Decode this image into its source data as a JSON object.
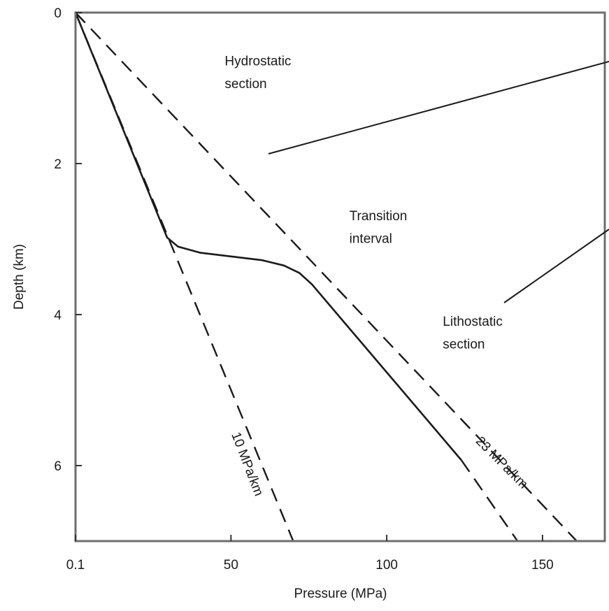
{
  "chart_data": {
    "type": "line",
    "title": "",
    "xlabel": "Pressure (MPa)",
    "ylabel": "Depth (km)",
    "xlim": [
      0.1,
      170
    ],
    "ylim": [
      0,
      7
    ],
    "y_inverted": true,
    "x_ticks": [
      {
        "value": 0.1,
        "label": "0.1"
      },
      {
        "value": 50,
        "label": "50"
      },
      {
        "value": 100,
        "label": "100"
      },
      {
        "value": 150,
        "label": "150"
      }
    ],
    "y_ticks": [
      {
        "value": 0,
        "label": "0"
      },
      {
        "value": 2,
        "label": "2"
      },
      {
        "value": 4,
        "label": "4"
      },
      {
        "value": 6,
        "label": "6"
      }
    ],
    "grid": false,
    "series": [
      {
        "name": "10 MPa/km",
        "style": "dashed",
        "points": [
          [
            0.1,
            0.0
          ],
          [
            70,
            7.0
          ]
        ]
      },
      {
        "name": "23 MPa/km",
        "style": "dashed",
        "points": [
          [
            0.1,
            0.0
          ],
          [
            161,
            7.0
          ]
        ]
      },
      {
        "name": "",
        "style": "solid",
        "points": [
          [
            0.1,
            0.0
          ],
          [
            29.5,
            2.98
          ],
          [
            33,
            3.1
          ],
          [
            40,
            3.18
          ],
          [
            50,
            3.23
          ],
          [
            60,
            3.28
          ],
          [
            67,
            3.35
          ],
          [
            72,
            3.45
          ],
          [
            76,
            3.6
          ],
          [
            124,
            5.93
          ]
        ]
      },
      {
        "name": "",
        "style": "dashed",
        "points": [
          [
            124,
            5.93
          ],
          [
            142,
            7.0
          ]
        ]
      }
    ],
    "annotations": [
      {
        "text": "Hydrostatic",
        "x": 48,
        "y": 0.7
      },
      {
        "text": "section",
        "x": 48,
        "y": 1.0
      },
      {
        "text": "Transition",
        "x": 88,
        "y": 2.75
      },
      {
        "text": "interval",
        "x": 88,
        "y": 3.05
      },
      {
        "text": "Lithostatic",
        "x": 118,
        "y": 4.15
      },
      {
        "text": "section",
        "x": 118,
        "y": 4.45
      },
      {
        "text": "10 MPa/km",
        "x": 54,
        "y": 6.0,
        "rotation": 69
      },
      {
        "text": "23 MPa/km",
        "x": 136,
        "y": 6.0,
        "rotation": 45
      }
    ],
    "colors": {
      "line": "#1a1a1a",
      "frame": "#6e6e6e"
    }
  }
}
